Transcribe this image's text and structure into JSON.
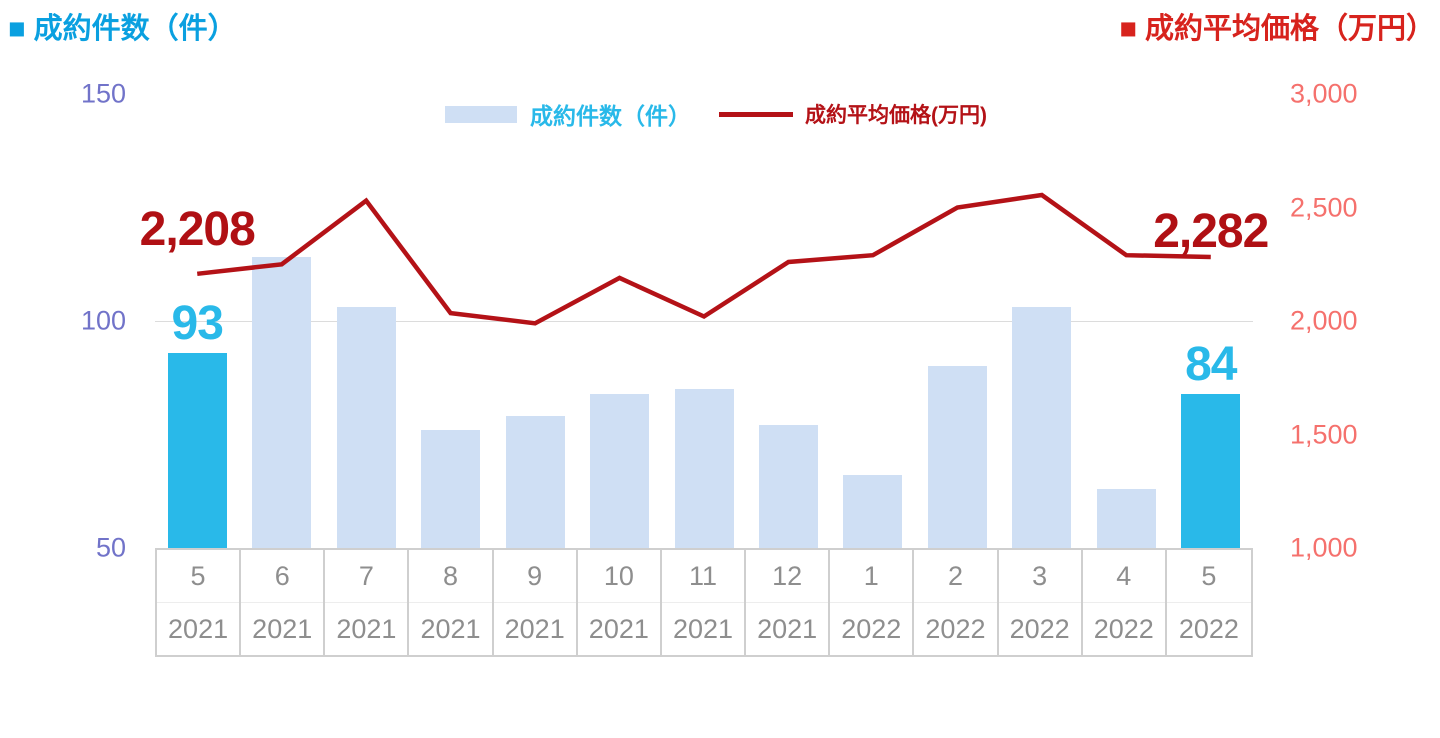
{
  "header": {
    "left_title": "■ 成約件数（件）",
    "right_title": "■ 成約平均価格（万円）"
  },
  "legend": {
    "bars_label": "成約件数（件）",
    "line_label": "成約平均価格(万円)"
  },
  "colors": {
    "left_title": "#0aa0e0",
    "right_title": "#d7231d",
    "bar_fill": "#cfdff4",
    "bar_highlight": "#29b9e9",
    "line": "#b41217",
    "annotation_count": "#29b9e9",
    "annotation_price": "#b01014",
    "left_axis_text": "#7173c9",
    "right_axis_text": "#f5716d",
    "x_axis_text": "#8e8e8e",
    "gridline": "#dcdcdc",
    "table_border": "#cfcfcf"
  },
  "chart_data": {
    "type": "bar+line combo",
    "categories": [
      {
        "month": "5",
        "year": "2021"
      },
      {
        "month": "6",
        "year": "2021"
      },
      {
        "month": "7",
        "year": "2021"
      },
      {
        "month": "8",
        "year": "2021"
      },
      {
        "month": "9",
        "year": "2021"
      },
      {
        "month": "10",
        "year": "2021"
      },
      {
        "month": "11",
        "year": "2021"
      },
      {
        "month": "12",
        "year": "2021"
      },
      {
        "month": "1",
        "year": "2022"
      },
      {
        "month": "2",
        "year": "2022"
      },
      {
        "month": "3",
        "year": "2022"
      },
      {
        "month": "4",
        "year": "2022"
      },
      {
        "month": "5",
        "year": "2022"
      }
    ],
    "series": [
      {
        "name": "成約件数（件）",
        "type": "bar",
        "axis": "left",
        "values": [
          93,
          114,
          103,
          76,
          79,
          84,
          85,
          77,
          66,
          90,
          103,
          63,
          84
        ],
        "highlight_indices": [
          0,
          12
        ]
      },
      {
        "name": "成約平均価格(万円)",
        "type": "line",
        "axis": "right",
        "values": [
          2208,
          2250,
          2530,
          2035,
          1990,
          2190,
          2020,
          2260,
          2290,
          2500,
          2555,
          2290,
          2282
        ]
      }
    ],
    "left_axis": {
      "range": [
        50,
        150
      ],
      "ticks": [
        {
          "label": "150",
          "value": 150
        },
        {
          "label": "100",
          "value": 100
        },
        {
          "label": "50",
          "value": 50
        }
      ],
      "gridline_values": [
        100
      ]
    },
    "right_axis": {
      "range": [
        1000,
        3000
      ],
      "ticks": [
        {
          "label": "3,000",
          "value": 3000
        },
        {
          "label": "2,500",
          "value": 2500
        },
        {
          "label": "2,000",
          "value": 2000
        },
        {
          "label": "1,500",
          "value": 1500
        },
        {
          "label": "1,000",
          "value": 1000
        }
      ]
    },
    "annotations": [
      {
        "text": "2,208",
        "series": "line",
        "index": 0
      },
      {
        "text": "93",
        "series": "bar",
        "index": 0
      },
      {
        "text": "2,282",
        "series": "line",
        "index": 12
      },
      {
        "text": "84",
        "series": "bar",
        "index": 12
      }
    ],
    "legend_position": "top-center",
    "grid": "single horizontal gridline at left-axis value 100"
  }
}
